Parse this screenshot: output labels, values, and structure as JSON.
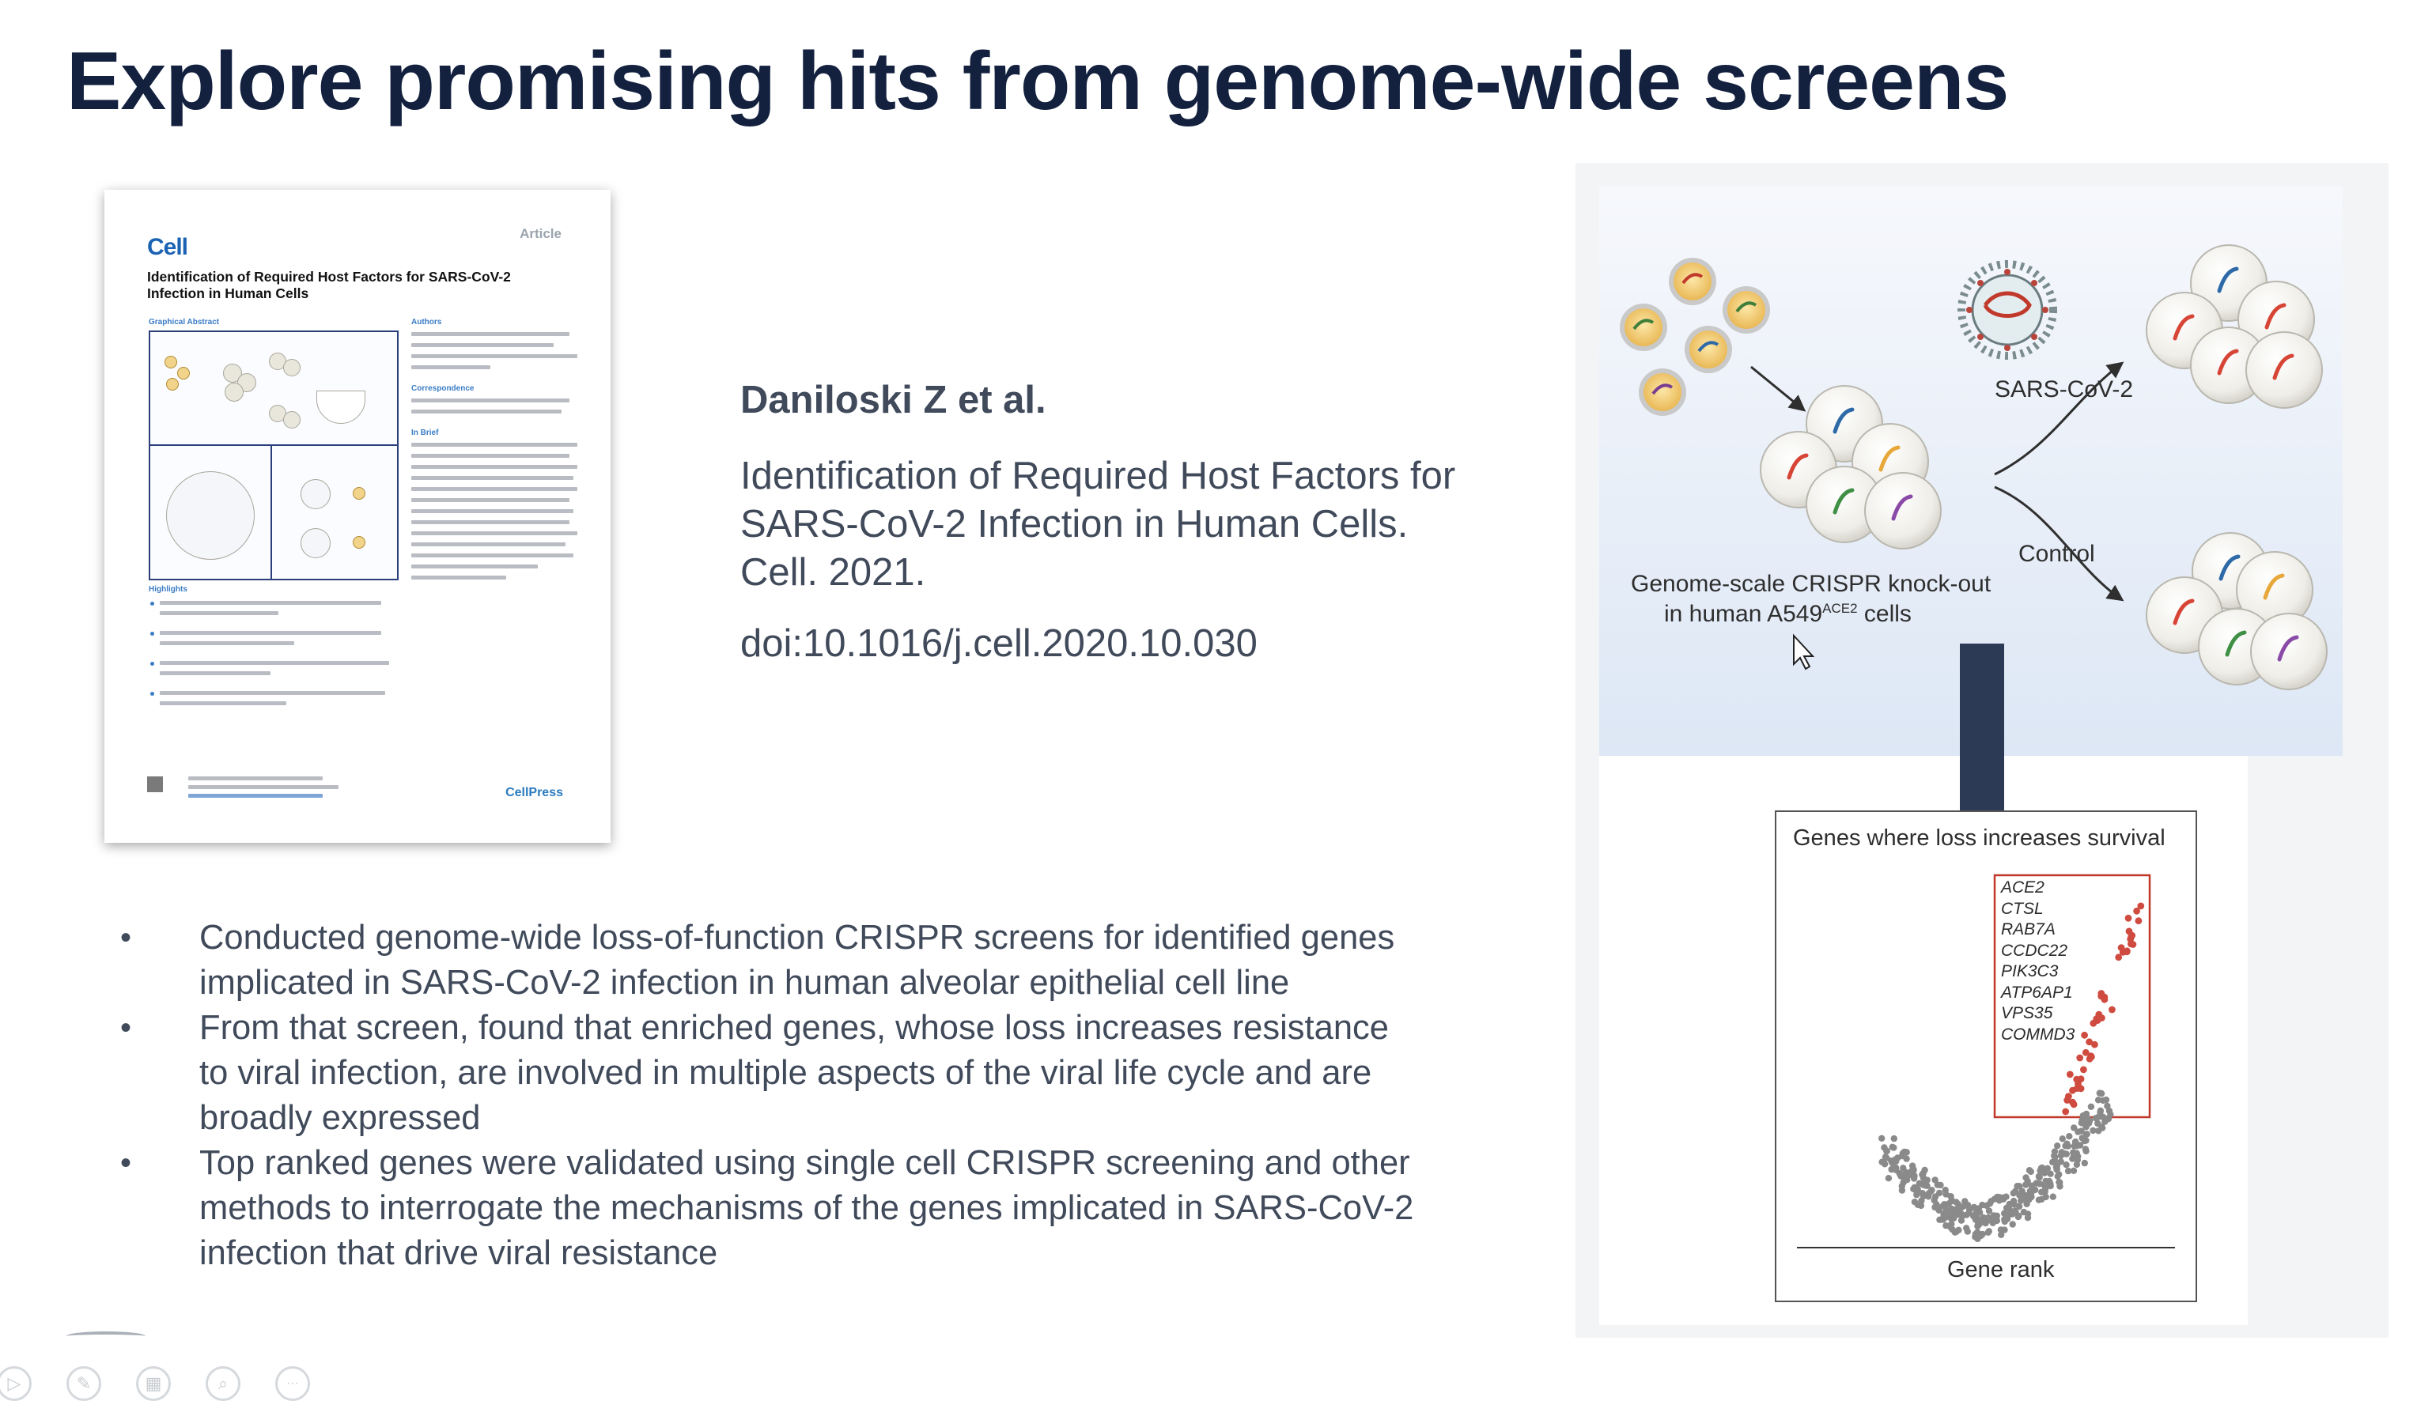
{
  "slide": {
    "title": "Explore promising hits from genome-wide screens"
  },
  "paper_thumbnail": {
    "journal_logo": "Cell",
    "article_type": "Article",
    "title": "Identification of Required Host Factors for SARS-CoV-2 Infection in Human Cells",
    "graphical_abstract_label": "Graphical Abstract",
    "authors_label": "Authors",
    "correspondence_label": "Correspondence",
    "in_brief_label": "In Brief",
    "highlights_label": "Highlights",
    "publisher_logo": "CellPress"
  },
  "citation": {
    "authors": "Daniloski Z et al.",
    "title": "Identification of Required Host Factors for SARS-CoV-2 Infection in Human Cells. Cell. 2021.",
    "doi": "doi:10.1016/j.cell.2020.10.030"
  },
  "bullets": [
    "Conducted genome-wide loss-of-function CRISPR screens for identified genes implicated in SARS-CoV-2 infection in human alveolar epithelial cell line",
    "From that screen, found that enriched genes, whose loss increases resistance to viral infection, are involved in multiple aspects of the viral life cycle and are broadly expressed",
    "Top ranked genes were validated using single cell CRISPR screening and other methods to interrogate the mechanisms of the genes implicated in SARS-CoV-2 infection that drive viral resistance"
  ],
  "bullet_marker": "•",
  "figure": {
    "library_label_line1": "Genome-scale CRISPR knock-out",
    "library_label_line2_prefix": "in human A549",
    "library_label_superscript": "ACE2",
    "library_label_line2_suffix": " cells",
    "sars_label": "SARS-CoV-2",
    "control_label": "Control",
    "plot_title": "Genes where loss increases survival",
    "plot_xlabel": "Gene rank",
    "top_genes": [
      "ACE2",
      "CTSL",
      "RAB7A",
      "CCDC22",
      "PIK3C3",
      "ATP6AP1",
      "VPS35",
      "COMMD3"
    ],
    "colors": {
      "panel_bg": "#e4ecf7",
      "arrow": "#2d3a55",
      "hit_points": "#cf4b3f",
      "background_points": "#8a8a8a",
      "highlight_box": "#c0392b"
    }
  },
  "toolbar": {
    "icons": [
      "play-icon",
      "pen-icon",
      "slides-icon",
      "zoom-icon",
      "more-icon"
    ],
    "glyphs": [
      "▷",
      "✎",
      "▦",
      "⌕",
      "···"
    ]
  }
}
